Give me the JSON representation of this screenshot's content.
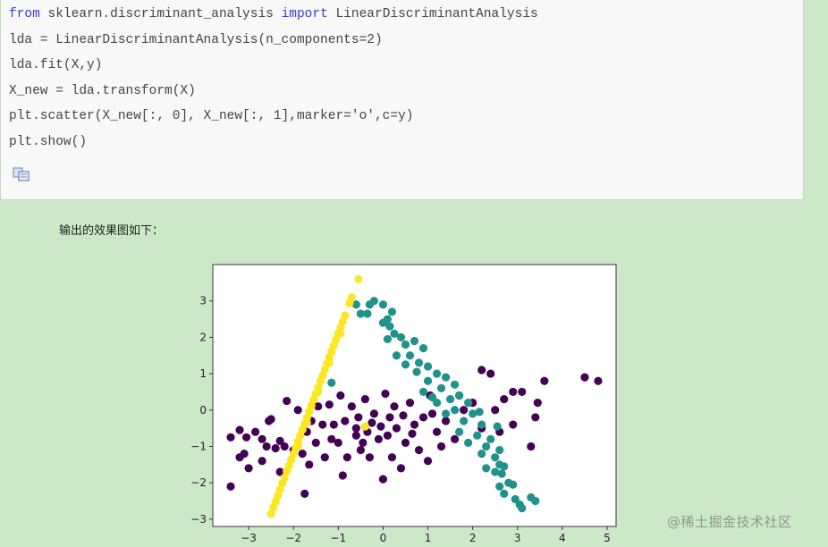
{
  "code": {
    "lines": [
      [
        {
          "t": "from",
          "kw": true
        },
        {
          "t": " sklearn.discriminant_analysis "
        },
        {
          "t": "import",
          "kw": true
        },
        {
          "t": " LinearDiscriminantAnalysis"
        }
      ],
      [
        {
          "t": "lda = LinearDiscriminantAnalysis(n_components=2)"
        }
      ],
      [
        {
          "t": "lda.fit(X,y)"
        }
      ],
      [
        {
          "t": "X_new = lda.transform(X)"
        }
      ],
      [
        {
          "t": "plt.scatter(X_new[:, 0], X_new[:, 1],marker='o',c=y)"
        }
      ],
      [
        {
          "t": "plt.show()"
        }
      ]
    ],
    "copy_icon": "copy-icon"
  },
  "caption": "输出的效果图如下：",
  "watermark": "@稀土掘金技术社区",
  "chart_data": {
    "type": "scatter",
    "title": "",
    "xlabel": "",
    "ylabel": "",
    "xlim": [
      -3.8,
      5.2
    ],
    "ylim": [
      -3.2,
      4.0
    ],
    "xticks": [
      -3,
      -2,
      -1,
      0,
      1,
      2,
      3,
      4,
      5
    ],
    "yticks": [
      -3,
      -2,
      -1,
      0,
      1,
      2,
      3
    ],
    "grid": false,
    "legend": "none",
    "series": [
      {
        "color": "#440154",
        "points": [
          [
            -3.4,
            -0.75
          ],
          [
            -3.4,
            -2.1
          ],
          [
            -3.2,
            -0.55
          ],
          [
            -3.2,
            -1.3
          ],
          [
            -3.1,
            -1.2
          ],
          [
            -3.05,
            -0.75
          ],
          [
            -3.0,
            -1.6
          ],
          [
            -2.85,
            -0.6
          ],
          [
            -2.7,
            -0.8
          ],
          [
            -2.7,
            -1.4
          ],
          [
            -2.6,
            -1.0
          ],
          [
            -2.55,
            -0.3
          ],
          [
            -2.5,
            -0.25
          ],
          [
            -2.4,
            -1.05
          ],
          [
            -2.3,
            -0.85
          ],
          [
            -2.3,
            -1.7
          ],
          [
            -2.2,
            -1.0
          ],
          [
            -2.15,
            0.25
          ],
          [
            -2.0,
            -1.1
          ],
          [
            -1.9,
            0.0
          ],
          [
            -1.8,
            -1.2
          ],
          [
            -1.75,
            -2.3
          ],
          [
            -1.7,
            -0.6
          ],
          [
            -1.65,
            -1.5
          ],
          [
            -1.6,
            -0.3
          ],
          [
            -1.5,
            -0.9
          ],
          [
            -1.45,
            0.1
          ],
          [
            -1.35,
            -0.4
          ],
          [
            -1.3,
            -1.3
          ],
          [
            -1.2,
            0.15
          ],
          [
            -1.15,
            -0.8
          ],
          [
            -1.0,
            -0.9
          ],
          [
            -0.95,
            0.4
          ],
          [
            -0.9,
            -1.8
          ],
          [
            -0.85,
            -0.3
          ],
          [
            -0.8,
            -1.3
          ],
          [
            -0.7,
            0.1
          ],
          [
            -0.6,
            -0.7
          ],
          [
            -0.55,
            -0.2
          ],
          [
            -0.5,
            -1.1
          ],
          [
            -0.4,
            0.3
          ],
          [
            -0.35,
            -0.6
          ],
          [
            -0.3,
            -1.3
          ],
          [
            -0.2,
            -0.1
          ],
          [
            -0.1,
            -0.8
          ],
          [
            -0.05,
            -0.45
          ],
          [
            0.0,
            -1.9
          ],
          [
            0.05,
            0.45
          ],
          [
            0.1,
            -0.7
          ],
          [
            0.2,
            -1.3
          ],
          [
            0.25,
            0.1
          ],
          [
            0.3,
            -0.5
          ],
          [
            0.4,
            -1.6
          ],
          [
            0.5,
            -0.9
          ],
          [
            0.6,
            0.2
          ],
          [
            0.7,
            -0.4
          ],
          [
            0.8,
            -1.1
          ],
          [
            0.9,
            -0.2
          ],
          [
            1.0,
            -1.4
          ],
          [
            1.05,
            0.4
          ],
          [
            1.2,
            -0.6
          ],
          [
            1.3,
            -1.0
          ],
          [
            1.4,
            -0.3
          ],
          [
            1.6,
            -0.8
          ],
          [
            1.7,
            0.4
          ],
          [
            1.8,
            0.0
          ],
          [
            2.0,
            0.2
          ],
          [
            2.2,
            1.1
          ],
          [
            2.2,
            -0.5
          ],
          [
            2.4,
            1.0
          ],
          [
            2.5,
            0.0
          ],
          [
            2.6,
            -0.6
          ],
          [
            2.7,
            0.3
          ],
          [
            2.9,
            -0.4
          ],
          [
            2.9,
            0.5
          ],
          [
            3.1,
            0.5
          ],
          [
            3.3,
            -1.0
          ],
          [
            3.4,
            -0.2
          ],
          [
            3.45,
            0.2
          ],
          [
            3.6,
            0.8
          ],
          [
            4.5,
            0.9
          ],
          [
            4.8,
            0.8
          ],
          [
            -0.6,
            -0.5
          ],
          [
            -0.25,
            -0.35
          ],
          [
            0.15,
            -0.2
          ],
          [
            -1.1,
            -0.4
          ],
          [
            0.45,
            -0.15
          ],
          [
            -0.45,
            -0.9
          ],
          [
            0.65,
            -0.65
          ],
          [
            1.1,
            -0.1
          ]
        ]
      },
      {
        "color": "#21918c",
        "points": [
          [
            -0.3,
            2.9
          ],
          [
            -0.2,
            3.0
          ],
          [
            -0.5,
            2.65
          ],
          [
            -0.35,
            2.65
          ],
          [
            0.0,
            2.9
          ],
          [
            0.2,
            2.7
          ],
          [
            0.1,
            2.5
          ],
          [
            0.0,
            2.4
          ],
          [
            0.15,
            2.3
          ],
          [
            0.25,
            2.1
          ],
          [
            0.1,
            1.95
          ],
          [
            0.4,
            2.0
          ],
          [
            0.5,
            1.8
          ],
          [
            0.7,
            1.9
          ],
          [
            0.9,
            1.7
          ],
          [
            0.6,
            1.5
          ],
          [
            0.3,
            1.5
          ],
          [
            0.8,
            1.3
          ],
          [
            1.0,
            1.2
          ],
          [
            0.5,
            1.25
          ],
          [
            1.2,
            1.0
          ],
          [
            1.4,
            0.9
          ],
          [
            1.0,
            0.8
          ],
          [
            1.3,
            0.6
          ],
          [
            1.6,
            0.7
          ],
          [
            0.9,
            0.5
          ],
          [
            1.5,
            0.3
          ],
          [
            1.7,
            0.4
          ],
          [
            1.2,
            0.2
          ],
          [
            1.9,
            0.2
          ],
          [
            1.6,
            0.0
          ],
          [
            2.0,
            -0.1
          ],
          [
            1.4,
            -0.1
          ],
          [
            1.8,
            -0.3
          ],
          [
            2.2,
            -0.4
          ],
          [
            1.7,
            -0.6
          ],
          [
            2.1,
            -0.7
          ],
          [
            2.4,
            -0.8
          ],
          [
            1.9,
            -0.9
          ],
          [
            2.3,
            -1.0
          ],
          [
            2.6,
            -1.1
          ],
          [
            2.2,
            -1.2
          ],
          [
            2.5,
            -1.3
          ],
          [
            2.6,
            -1.5
          ],
          [
            2.3,
            -1.6
          ],
          [
            2.7,
            -1.55
          ],
          [
            2.5,
            -1.7
          ],
          [
            2.65,
            -1.75
          ],
          [
            2.6,
            -2.1
          ],
          [
            2.8,
            -2.0
          ],
          [
            2.9,
            -2.05
          ],
          [
            2.7,
            -2.3
          ],
          [
            2.95,
            -2.45
          ],
          [
            3.05,
            -2.6
          ],
          [
            3.1,
            -2.7
          ],
          [
            3.3,
            -2.4
          ],
          [
            3.4,
            -2.5
          ],
          [
            -0.6,
            2.9
          ],
          [
            -1.15,
            0.75
          ],
          [
            2.15,
            -0.05
          ],
          [
            2.55,
            -0.45
          ],
          [
            1.1,
            0.35
          ],
          [
            0.75,
            1.05
          ]
        ]
      },
      {
        "color": "#fde725",
        "points": [
          [
            -2.5,
            -2.85
          ],
          [
            -2.45,
            -2.68
          ],
          [
            -2.4,
            -2.52
          ],
          [
            -2.35,
            -2.35
          ],
          [
            -2.3,
            -2.19
          ],
          [
            -2.25,
            -2.02
          ],
          [
            -2.2,
            -1.86
          ],
          [
            -2.15,
            -1.69
          ],
          [
            -2.1,
            -1.53
          ],
          [
            -2.05,
            -1.36
          ],
          [
            -2.0,
            -1.2
          ],
          [
            -1.95,
            -1.03
          ],
          [
            -1.9,
            -0.87
          ],
          [
            -1.85,
            -0.7
          ],
          [
            -1.8,
            -0.54
          ],
          [
            -1.75,
            -0.37
          ],
          [
            -1.7,
            -0.21
          ],
          [
            -1.65,
            -0.04
          ],
          [
            -1.6,
            0.12
          ],
          [
            -1.55,
            0.29
          ],
          [
            -1.5,
            0.45
          ],
          [
            -1.45,
            0.62
          ],
          [
            -1.4,
            0.79
          ],
          [
            -1.35,
            0.95
          ],
          [
            -1.3,
            1.12
          ],
          [
            -1.25,
            1.28
          ],
          [
            -1.2,
            1.45
          ],
          [
            -1.15,
            1.61
          ],
          [
            -1.1,
            1.78
          ],
          [
            -1.05,
            1.94
          ],
          [
            -1.0,
            2.11
          ],
          [
            -0.95,
            2.28
          ],
          [
            -0.9,
            2.44
          ],
          [
            -0.85,
            2.6
          ],
          [
            -0.75,
            2.94
          ],
          [
            -0.7,
            3.1
          ],
          [
            -0.55,
            3.6
          ],
          [
            -1.9,
            -1.0
          ],
          [
            -1.7,
            -0.35
          ],
          [
            -1.45,
            0.5
          ],
          [
            -1.2,
            1.3
          ],
          [
            -0.95,
            2.1
          ],
          [
            -0.4,
            -0.45
          ]
        ]
      }
    ]
  }
}
